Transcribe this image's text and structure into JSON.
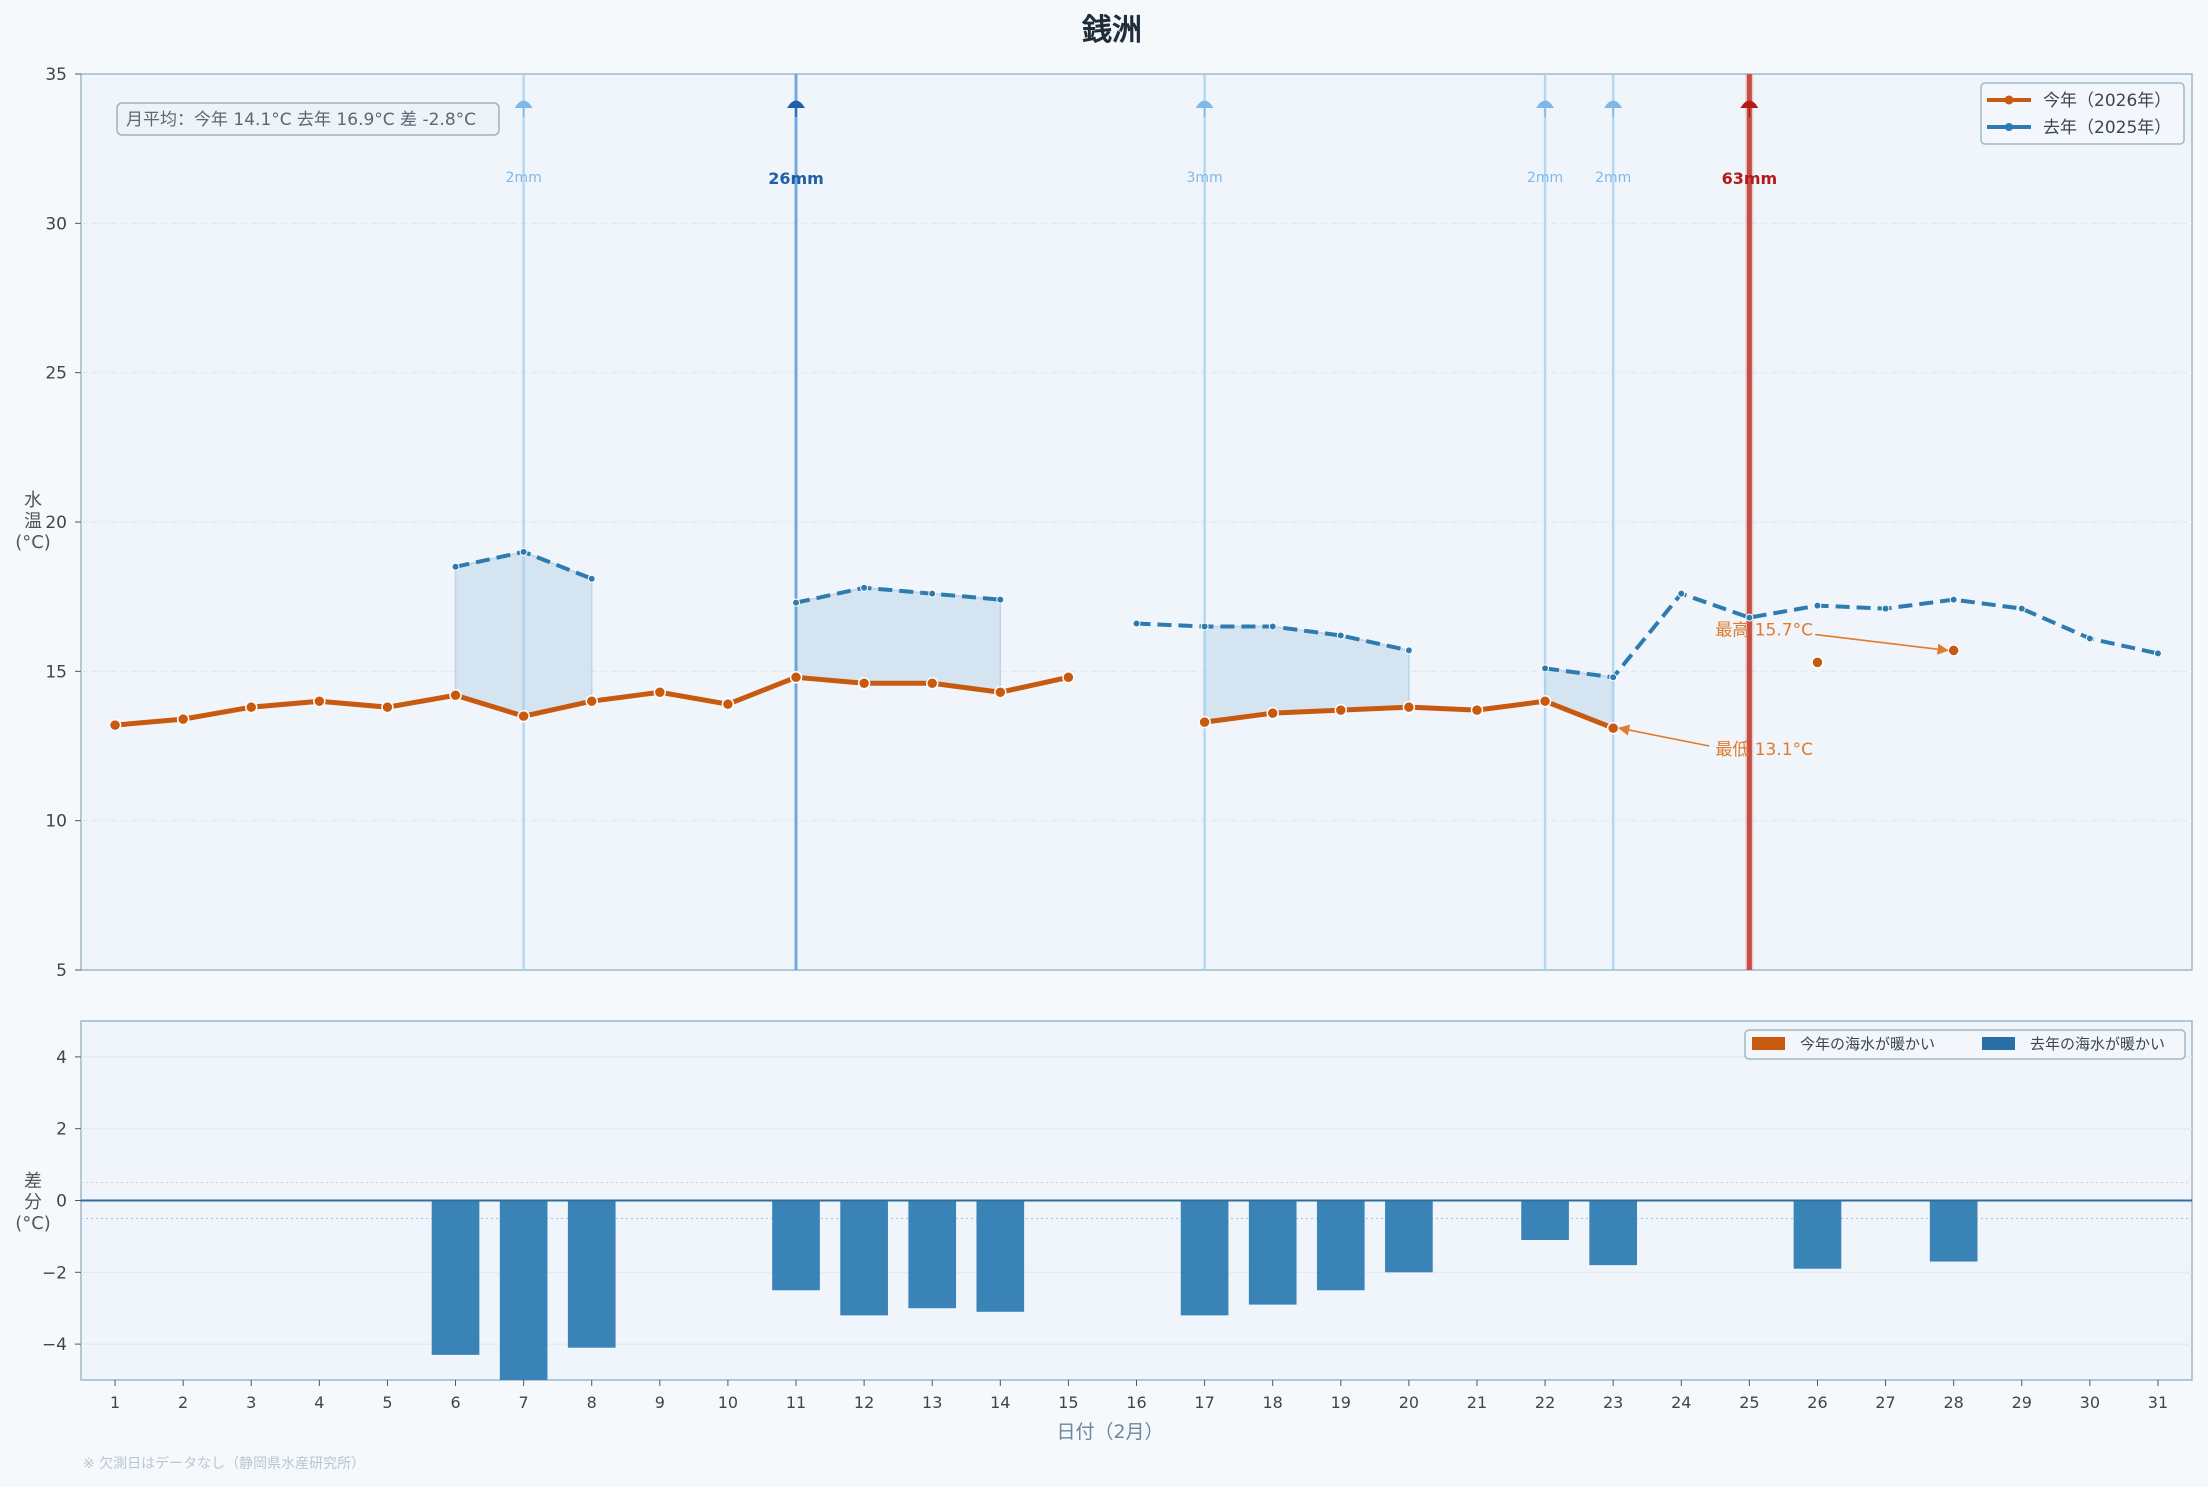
{
  "title": "銭洲",
  "footnote": "※ 欠測日はデータなし（静岡県水産研究所）",
  "avg_box": "月平均：今年 14.1°C  去年 16.9°C  差 -2.8°C",
  "colors": {
    "this_year": "#c85a10",
    "last_year": "#2e7bb0",
    "fill": "#cfe0ef",
    "rain_light": "#a9d2f0",
    "rain_medium": "#5b9bd6",
    "rain_heavy": "#c0392b",
    "bar_last": "#3a83b6",
    "bar_this": "#c85a10",
    "annotation": "#e07b2a",
    "background": "#f6f9fc",
    "plot_bg": "#f0f5fb",
    "frame": "#9fb8c8"
  },
  "chart_data": [
    {
      "type": "line",
      "ylabel": "水温(°C)",
      "ylim": [
        5,
        35
      ],
      "yticks": [
        5,
        10,
        15,
        20,
        25,
        30,
        35
      ],
      "xlim": [
        0.5,
        31.5
      ],
      "grid": true,
      "legend_position": "top-right",
      "series": [
        {
          "name": "今年（2026年）",
          "points": [
            [
              1,
              13.2
            ],
            [
              2,
              13.4
            ],
            [
              3,
              13.8
            ],
            [
              4,
              14.0
            ],
            [
              5,
              13.8
            ],
            [
              6,
              14.2
            ],
            [
              7,
              13.5
            ],
            [
              8,
              14.0
            ],
            [
              9,
              14.3
            ],
            [
              10,
              13.9
            ],
            [
              11,
              14.8
            ],
            [
              12,
              14.6
            ],
            [
              13,
              14.6
            ],
            [
              14,
              14.3
            ],
            [
              15,
              14.8
            ],
            [
              17,
              13.3
            ],
            [
              18,
              13.6
            ],
            [
              19,
              13.7
            ],
            [
              20,
              13.8
            ],
            [
              21,
              13.7
            ],
            [
              22,
              14.0
            ],
            [
              23,
              13.1
            ],
            [
              26,
              15.3
            ],
            [
              28,
              15.7
            ]
          ]
        },
        {
          "name": "去年（2025年）",
          "points": [
            [
              6,
              18.5
            ],
            [
              7,
              19.0
            ],
            [
              8,
              18.1
            ],
            [
              11,
              17.3
            ],
            [
              12,
              17.8
            ],
            [
              13,
              17.6
            ],
            [
              14,
              17.4
            ],
            [
              16,
              16.6
            ],
            [
              17,
              16.5
            ],
            [
              18,
              16.5
            ],
            [
              19,
              16.2
            ],
            [
              20,
              15.7
            ],
            [
              22,
              15.1
            ],
            [
              23,
              14.8
            ],
            [
              24,
              17.6
            ],
            [
              25,
              16.8
            ],
            [
              26,
              17.2
            ],
            [
              27,
              17.1
            ],
            [
              28,
              17.4
            ],
            [
              29,
              17.1
            ],
            [
              30,
              16.1
            ],
            [
              31,
              15.6
            ]
          ]
        }
      ],
      "rain": [
        {
          "day": 7,
          "label": "2mm",
          "level": "light"
        },
        {
          "day": 11,
          "label": "26mm",
          "level": "medium"
        },
        {
          "day": 17,
          "label": "3mm",
          "level": "light"
        },
        {
          "day": 22,
          "label": "2mm",
          "level": "light"
        },
        {
          "day": 23,
          "label": "2mm",
          "level": "light"
        },
        {
          "day": 25,
          "label": "63mm",
          "level": "heavy"
        }
      ],
      "annotations": [
        {
          "text": "最高 15.7°C",
          "point": [
            28,
            15.7
          ],
          "text_at": [
            24.5,
            16.4
          ]
        },
        {
          "text": "最低 13.1°C",
          "point": [
            23,
            13.1
          ],
          "text_at": [
            24.5,
            12.4
          ]
        }
      ]
    },
    {
      "type": "bar",
      "ylabel": "差分(°C)",
      "ylim": [
        -5,
        5
      ],
      "yticks": [
        -4,
        -2,
        0,
        2,
        4
      ],
      "xlabel": "日付（2月）",
      "x_ticks": [
        1,
        2,
        3,
        4,
        5,
        6,
        7,
        8,
        9,
        10,
        11,
        12,
        13,
        14,
        15,
        16,
        17,
        18,
        19,
        20,
        21,
        22,
        23,
        24,
        25,
        26,
        27,
        28,
        29,
        30,
        31
      ],
      "legend_position": "top-right",
      "legend": [
        "今年の海水が暖かい",
        "去年の海水が暖かい"
      ],
      "bars": [
        [
          6,
          -4.3
        ],
        [
          7,
          -5.5
        ],
        [
          8,
          -4.1
        ],
        [
          11,
          -2.5
        ],
        [
          12,
          -3.2
        ],
        [
          13,
          -3.0
        ],
        [
          14,
          -3.1
        ],
        [
          17,
          -3.2
        ],
        [
          18,
          -2.9
        ],
        [
          19,
          -2.5
        ],
        [
          20,
          -2.0
        ],
        [
          22,
          -1.1
        ],
        [
          23,
          -1.8
        ],
        [
          26,
          -1.9
        ],
        [
          28,
          -1.7
        ]
      ]
    }
  ]
}
